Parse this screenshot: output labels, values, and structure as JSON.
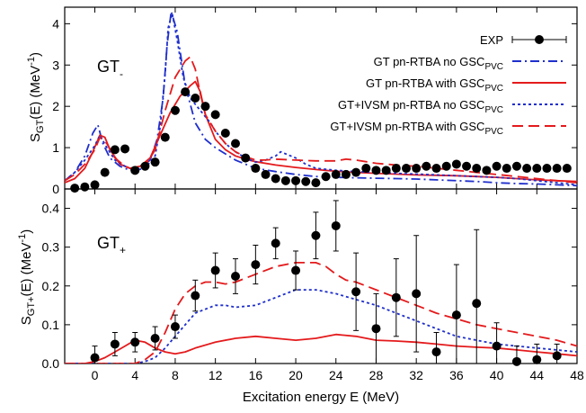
{
  "chart_data": [
    {
      "type": "line",
      "panel": "top",
      "label_main": "GT",
      "label_sub": "-",
      "ylabel": {
        "main": "S",
        "sub": "GT",
        "rest": "(E) (MeV",
        "sup": "-1",
        "close": ")"
      },
      "xlim": [
        -3,
        48
      ],
      "ylim": [
        0,
        4.4
      ],
      "yticks": [
        0,
        1,
        2,
        3,
        4
      ],
      "xticks": [
        0,
        4,
        8,
        12,
        16,
        20,
        24,
        28,
        32,
        36,
        40,
        44,
        48
      ],
      "legend_position": "top-right",
      "legend": [
        {
          "text": "EXP",
          "sub": "",
          "color": "#000000",
          "style": "points"
        },
        {
          "text": "GT pn-RTBA no GSC",
          "sub": "PVC",
          "color": "#1f2fcc",
          "style": "dashdot"
        },
        {
          "text": "GT pn-RTBA with GSC",
          "sub": "PVC",
          "color": "#e41a1c",
          "style": "solid"
        },
        {
          "text": "GT+IVSM pn-RTBA no GSC",
          "sub": "PVC",
          "color": "#1f2fcc",
          "style": "dotted"
        },
        {
          "text": "GT+IVSM pn-RTBA with GSC",
          "sub": "PVC",
          "color": "#e41a1c",
          "style": "dashed"
        }
      ],
      "series": [
        {
          "color": "#1f2fcc",
          "style": "dashdot",
          "x": [
            -3,
            -2,
            -1,
            -0.2,
            0.3,
            0.8,
            1.5,
            2.5,
            3.5,
            4.5,
            5.5,
            6.2,
            6.8,
            7.2,
            7.6,
            8.2,
            9,
            10,
            11,
            12,
            13,
            14,
            15,
            16,
            18,
            20,
            22,
            24,
            26,
            28,
            30,
            32,
            34,
            36,
            38,
            40,
            42,
            44,
            46,
            48
          ],
          "y": [
            0.2,
            0.4,
            0.8,
            1.35,
            1.55,
            1.1,
            0.75,
            0.55,
            0.45,
            0.5,
            0.7,
            1.2,
            2.2,
            3.5,
            4.3,
            3.8,
            2.5,
            1.6,
            1.2,
            1.0,
            0.85,
            0.7,
            0.6,
            0.5,
            0.42,
            0.35,
            0.3,
            0.28,
            0.27,
            0.26,
            0.25,
            0.24,
            0.22,
            0.2,
            0.18,
            0.15,
            0.13,
            0.12,
            0.1,
            0.08
          ]
        },
        {
          "color": "#e41a1c",
          "style": "solid",
          "x": [
            -3,
            -2,
            -1,
            -0.2,
            0.5,
            1,
            1.5,
            2.5,
            3.5,
            4.5,
            5.5,
            6.5,
            7.5,
            8.5,
            9.5,
            10,
            10.5,
            11,
            12,
            13,
            14,
            15,
            16,
            18,
            20,
            22,
            24,
            26,
            28,
            30,
            32,
            34,
            36,
            38,
            40,
            42,
            44,
            46,
            48
          ],
          "y": [
            0.15,
            0.25,
            0.5,
            0.9,
            1.3,
            1.25,
            0.95,
            0.6,
            0.5,
            0.55,
            0.75,
            1.3,
            1.85,
            2.25,
            2.5,
            2.6,
            2.35,
            1.8,
            1.2,
            0.95,
            0.8,
            0.72,
            0.66,
            0.58,
            0.52,
            0.47,
            0.43,
            0.4,
            0.38,
            0.36,
            0.34,
            0.33,
            0.32,
            0.3,
            0.28,
            0.25,
            0.22,
            0.2,
            0.18
          ]
        },
        {
          "color": "#1f2fcc",
          "style": "dotted",
          "x": [
            -3,
            -2,
            -1,
            0,
            0.5,
            1.2,
            2,
            3,
            4,
            5,
            6,
            6.5,
            7,
            7.3,
            7.7,
            8.2,
            8.8,
            9.5,
            10.5,
            11.5,
            12,
            13,
            14,
            15,
            16,
            17,
            18,
            18.5,
            19,
            20,
            21,
            22,
            24,
            26,
            28,
            30,
            32,
            34,
            36,
            38,
            40,
            42,
            44,
            46,
            48
          ],
          "y": [
            0.2,
            0.4,
            0.7,
            1.05,
            1.3,
            1.0,
            0.7,
            0.55,
            0.45,
            0.5,
            0.8,
            1.5,
            2.8,
            3.9,
            4.25,
            3.6,
            2.7,
            2.2,
            1.9,
            1.6,
            1.4,
            1.1,
            0.9,
            0.75,
            0.65,
            0.7,
            0.8,
            0.9,
            0.85,
            0.75,
            0.6,
            0.5,
            0.45,
            0.42,
            0.4,
            0.38,
            0.36,
            0.34,
            0.32,
            0.3,
            0.28,
            0.25,
            0.2,
            0.15,
            0.1
          ]
        },
        {
          "color": "#e41a1c",
          "style": "dashed",
          "x": [
            -3,
            -2,
            -1,
            0,
            0.5,
            1.2,
            2,
            3,
            4,
            5,
            6,
            7,
            8,
            9,
            9.5,
            10,
            10.5,
            11,
            12,
            13,
            14,
            15,
            16,
            17,
            18,
            20,
            22,
            24,
            25,
            26,
            28,
            30,
            32,
            34,
            36,
            38,
            40,
            42,
            44,
            46,
            48
          ],
          "y": [
            0.2,
            0.35,
            0.6,
            0.95,
            1.25,
            1.1,
            0.75,
            0.55,
            0.45,
            0.55,
            0.95,
            1.9,
            2.7,
            3.1,
            3.2,
            2.9,
            2.3,
            1.8,
            1.4,
            1.1,
            0.9,
            0.78,
            0.7,
            0.7,
            0.72,
            0.7,
            0.68,
            0.68,
            0.72,
            0.7,
            0.62,
            0.58,
            0.55,
            0.5,
            0.45,
            0.4,
            0.35,
            0.3,
            0.25,
            0.2,
            0.15
          ]
        }
      ],
      "exp": {
        "x": [
          -2,
          -1,
          0,
          1,
          2,
          3,
          4,
          5,
          6,
          7,
          8,
          9,
          10,
          11,
          12,
          13,
          14,
          15,
          16,
          17,
          18,
          19,
          20,
          21,
          22,
          23,
          24,
          25,
          26,
          27,
          28,
          29,
          30,
          31,
          32,
          33,
          34,
          35,
          36,
          37,
          38,
          39,
          40,
          41,
          42,
          43,
          44,
          45,
          46,
          47
        ],
        "y": [
          0.02,
          0.05,
          0.1,
          0.4,
          0.95,
          0.97,
          0.45,
          0.55,
          0.65,
          1.25,
          1.9,
          2.35,
          2.2,
          2.0,
          1.8,
          1.35,
          1.1,
          0.75,
          0.5,
          0.35,
          0.25,
          0.2,
          0.2,
          0.18,
          0.15,
          0.3,
          0.35,
          0.35,
          0.4,
          0.5,
          0.45,
          0.45,
          0.5,
          0.5,
          0.5,
          0.55,
          0.5,
          0.55,
          0.6,
          0.55,
          0.5,
          0.45,
          0.55,
          0.5,
          0.55,
          0.5,
          0.5,
          0.5,
          0.5,
          0.5
        ]
      }
    },
    {
      "type": "line",
      "panel": "bottom",
      "label_main": "GT",
      "label_sub": "+",
      "ylabel": {
        "main": "S",
        "sub": "GT+",
        "rest": "(E) (MeV",
        "sup": "-1",
        "close": ")"
      },
      "xlabel": "Excitation energy E (MeV)",
      "xlim": [
        -3,
        48
      ],
      "ylim": [
        0,
        0.45
      ],
      "yticks": [
        0,
        0.1,
        0.2,
        0.3,
        0.4
      ],
      "ytick_labels": [
        "0.0",
        "0.1",
        "0.2",
        "0.3",
        "0.4"
      ],
      "xticks": [
        0,
        4,
        8,
        12,
        16,
        20,
        24,
        28,
        32,
        36,
        40,
        44,
        48
      ],
      "series": [
        {
          "color": "#e41a1c",
          "style": "solid",
          "x": [
            -3,
            -2,
            -1,
            0,
            1,
            2,
            3,
            4,
            5,
            6,
            7,
            8,
            9,
            10,
            12,
            14,
            16,
            18,
            20,
            22,
            24,
            26,
            28,
            30,
            32,
            34,
            36,
            38,
            40,
            42,
            44,
            46,
            48
          ],
          "y": [
            0,
            0,
            0,
            0.005,
            0.015,
            0.03,
            0.045,
            0.06,
            0.055,
            0.04,
            0.03,
            0.025,
            0.03,
            0.04,
            0.055,
            0.065,
            0.07,
            0.065,
            0.06,
            0.065,
            0.075,
            0.07,
            0.06,
            0.058,
            0.055,
            0.05,
            0.045,
            0.042,
            0.04,
            0.035,
            0.03,
            0.025,
            0.02
          ]
        },
        {
          "color": "#1f2fcc",
          "style": "dotted",
          "x": [
            -3,
            0,
            2,
            4,
            5,
            6,
            7,
            8,
            9,
            10,
            11,
            12,
            13,
            14,
            16,
            18,
            20,
            22,
            24,
            26,
            28,
            30,
            32,
            34,
            36,
            38,
            40,
            42,
            44,
            46,
            48
          ],
          "y": [
            0,
            0,
            0,
            0,
            0.005,
            0.015,
            0.04,
            0.07,
            0.1,
            0.13,
            0.14,
            0.15,
            0.15,
            0.145,
            0.15,
            0.17,
            0.19,
            0.19,
            0.18,
            0.165,
            0.15,
            0.13,
            0.11,
            0.09,
            0.07,
            0.06,
            0.05,
            0.045,
            0.04,
            0.035,
            0.03
          ]
        },
        {
          "color": "#e41a1c",
          "style": "dashed",
          "x": [
            -3,
            0,
            2,
            4,
            5,
            6,
            7,
            8,
            9,
            10,
            11,
            12,
            13,
            14,
            16,
            18,
            20,
            22,
            23,
            24,
            25,
            26,
            28,
            30,
            32,
            34,
            36,
            38,
            40,
            42,
            44,
            46,
            48
          ],
          "y": [
            0,
            0,
            0,
            0,
            0.01,
            0.03,
            0.08,
            0.14,
            0.18,
            0.2,
            0.21,
            0.21,
            0.205,
            0.21,
            0.23,
            0.25,
            0.26,
            0.26,
            0.25,
            0.23,
            0.215,
            0.21,
            0.19,
            0.17,
            0.15,
            0.13,
            0.115,
            0.1,
            0.09,
            0.08,
            0.07,
            0.06,
            0.045
          ]
        }
      ],
      "exp": {
        "x": [
          0,
          2,
          4,
          6,
          8,
          10,
          12,
          14,
          16,
          18,
          20,
          22,
          24,
          26,
          28,
          30,
          32,
          34,
          36,
          38,
          40,
          42,
          44,
          46
        ],
        "y": [
          0.015,
          0.05,
          0.055,
          0.065,
          0.095,
          0.175,
          0.24,
          0.225,
          0.255,
          0.31,
          0.24,
          0.33,
          0.355,
          0.185,
          0.09,
          0.17,
          0.18,
          0.03,
          0.125,
          0.155,
          0.045,
          0.005,
          0.01,
          0.02
        ],
        "err": [
          0.03,
          0.03,
          0.025,
          0.03,
          0.03,
          0.04,
          0.045,
          0.045,
          0.05,
          0.04,
          0.05,
          0.06,
          0.065,
          0.1,
          0.09,
          0.1,
          0.15,
          0.05,
          0.13,
          0.19,
          0.06,
          0.04,
          0.04,
          0.03
        ]
      }
    }
  ]
}
